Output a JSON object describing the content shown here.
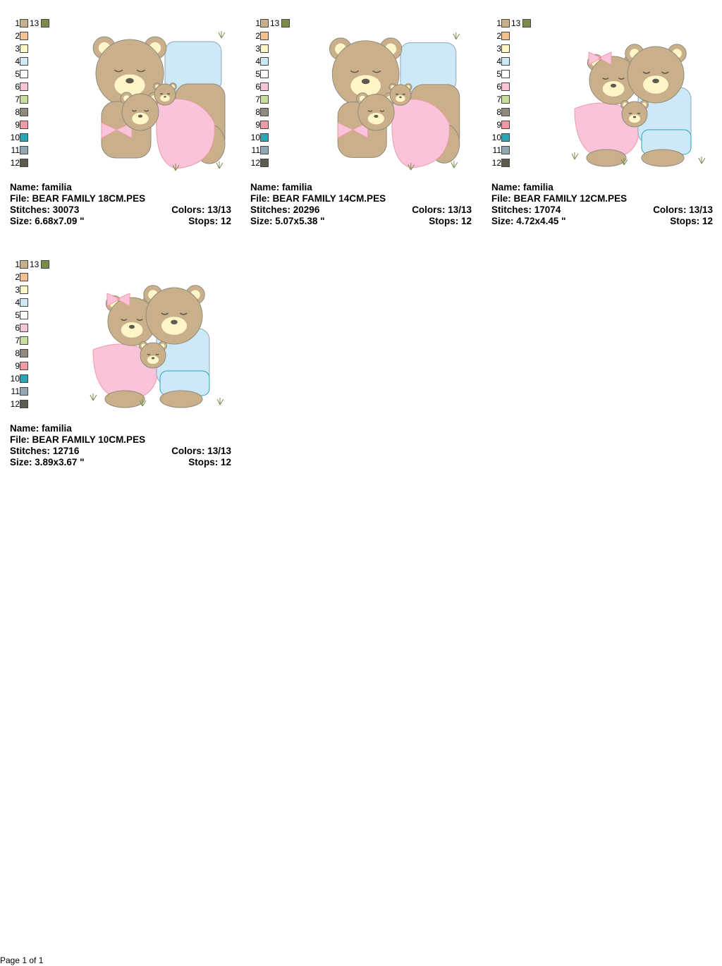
{
  "palette": [
    {
      "num": "1",
      "color": "#c9b08a"
    },
    {
      "num": "2",
      "color": "#f5c08f"
    },
    {
      "num": "3",
      "color": "#fff6c8"
    },
    {
      "num": "4",
      "color": "#cde8f7"
    },
    {
      "num": "5",
      "color": "#ffffff"
    },
    {
      "num": "6",
      "color": "#f9c3d9"
    },
    {
      "num": "7",
      "color": "#c8dc9d"
    },
    {
      "num": "8",
      "color": "#8f8a7b"
    },
    {
      "num": "9",
      "color": "#f09aa6"
    },
    {
      "num": "10",
      "color": "#2aa5b6"
    },
    {
      "num": "11",
      "color": "#93a6b3"
    },
    {
      "num": "12",
      "color": "#5f5a4e"
    },
    {
      "num": "13",
      "color": "#7a8c4a"
    }
  ],
  "labels": {
    "name": "Name:",
    "file": "File:",
    "stitches": "Stitches:",
    "size": "Size:",
    "colors": "Colors:",
    "stops": "Stops:"
  },
  "designs": [
    {
      "name": "familia",
      "file": "BEAR FAMILY 18CM.PES",
      "stitches": "30073",
      "colors": "13/13",
      "size": "6.68x7.09 \"",
      "stops": "12",
      "art": "tall"
    },
    {
      "name": "familia",
      "file": "BEAR FAMILY 14CM.PES",
      "stitches": "20296",
      "colors": "13/13",
      "size": "5.07x5.38 \"",
      "stops": "12",
      "art": "tall"
    },
    {
      "name": "familia",
      "file": "BEAR FAMILY 12CM.PES",
      "stitches": "17074",
      "colors": "13/13",
      "size": "4.72x4.45 \"",
      "stops": "12",
      "art": "wide"
    },
    {
      "name": "familia",
      "file": "BEAR FAMILY 10CM.PES",
      "stitches": "12716",
      "colors": "13/13",
      "size": "3.89x3.67 \"",
      "stops": "12",
      "art": "wide"
    }
  ],
  "footer": "Page 1 of 1"
}
